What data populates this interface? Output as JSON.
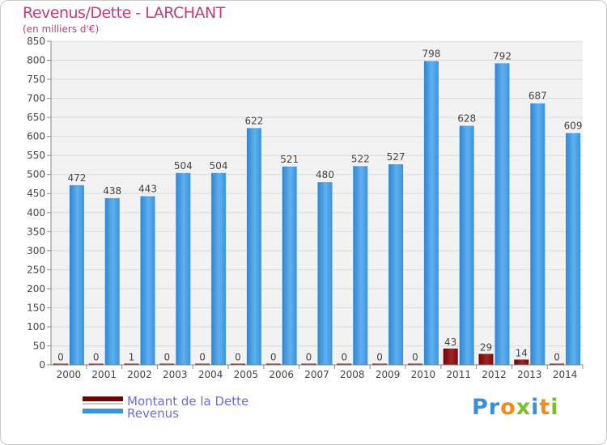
{
  "chart_data": {
    "type": "bar",
    "title": "Revenus/Dette - LARCHANT",
    "subtitle": "(en milliers d'€)",
    "categories": [
      "2000",
      "2001",
      "2002",
      "2003",
      "2004",
      "2005",
      "2006",
      "2007",
      "2008",
      "2009",
      "2010",
      "2011",
      "2012",
      "2013",
      "2014"
    ],
    "series": [
      {
        "name": "Montant de la Dette",
        "color": "#7a0c0c",
        "values": [
          0,
          0,
          1,
          0,
          0,
          0,
          0,
          0,
          0,
          0,
          0,
          43,
          29,
          14,
          0
        ]
      },
      {
        "name": "Revenus",
        "color": "#3a93dd",
        "values": [
          472,
          438,
          443,
          504,
          504,
          622,
          521,
          480,
          522,
          527,
          798,
          628,
          792,
          687,
          609
        ]
      }
    ],
    "ylim": [
      0,
      850
    ],
    "ytick_step": 50,
    "grid": true,
    "legend_position": "bottom-left"
  },
  "logo": {
    "text": "Proxiti",
    "letters": [
      "P",
      "r",
      "o",
      "x",
      "i",
      "t",
      "i"
    ],
    "colors": [
      "#3a8fd6",
      "#3a8fd6",
      "#f28a1f",
      "#7bbf2a",
      "#3a8fd6",
      "#f28a1f",
      "#7bbf2a"
    ]
  }
}
